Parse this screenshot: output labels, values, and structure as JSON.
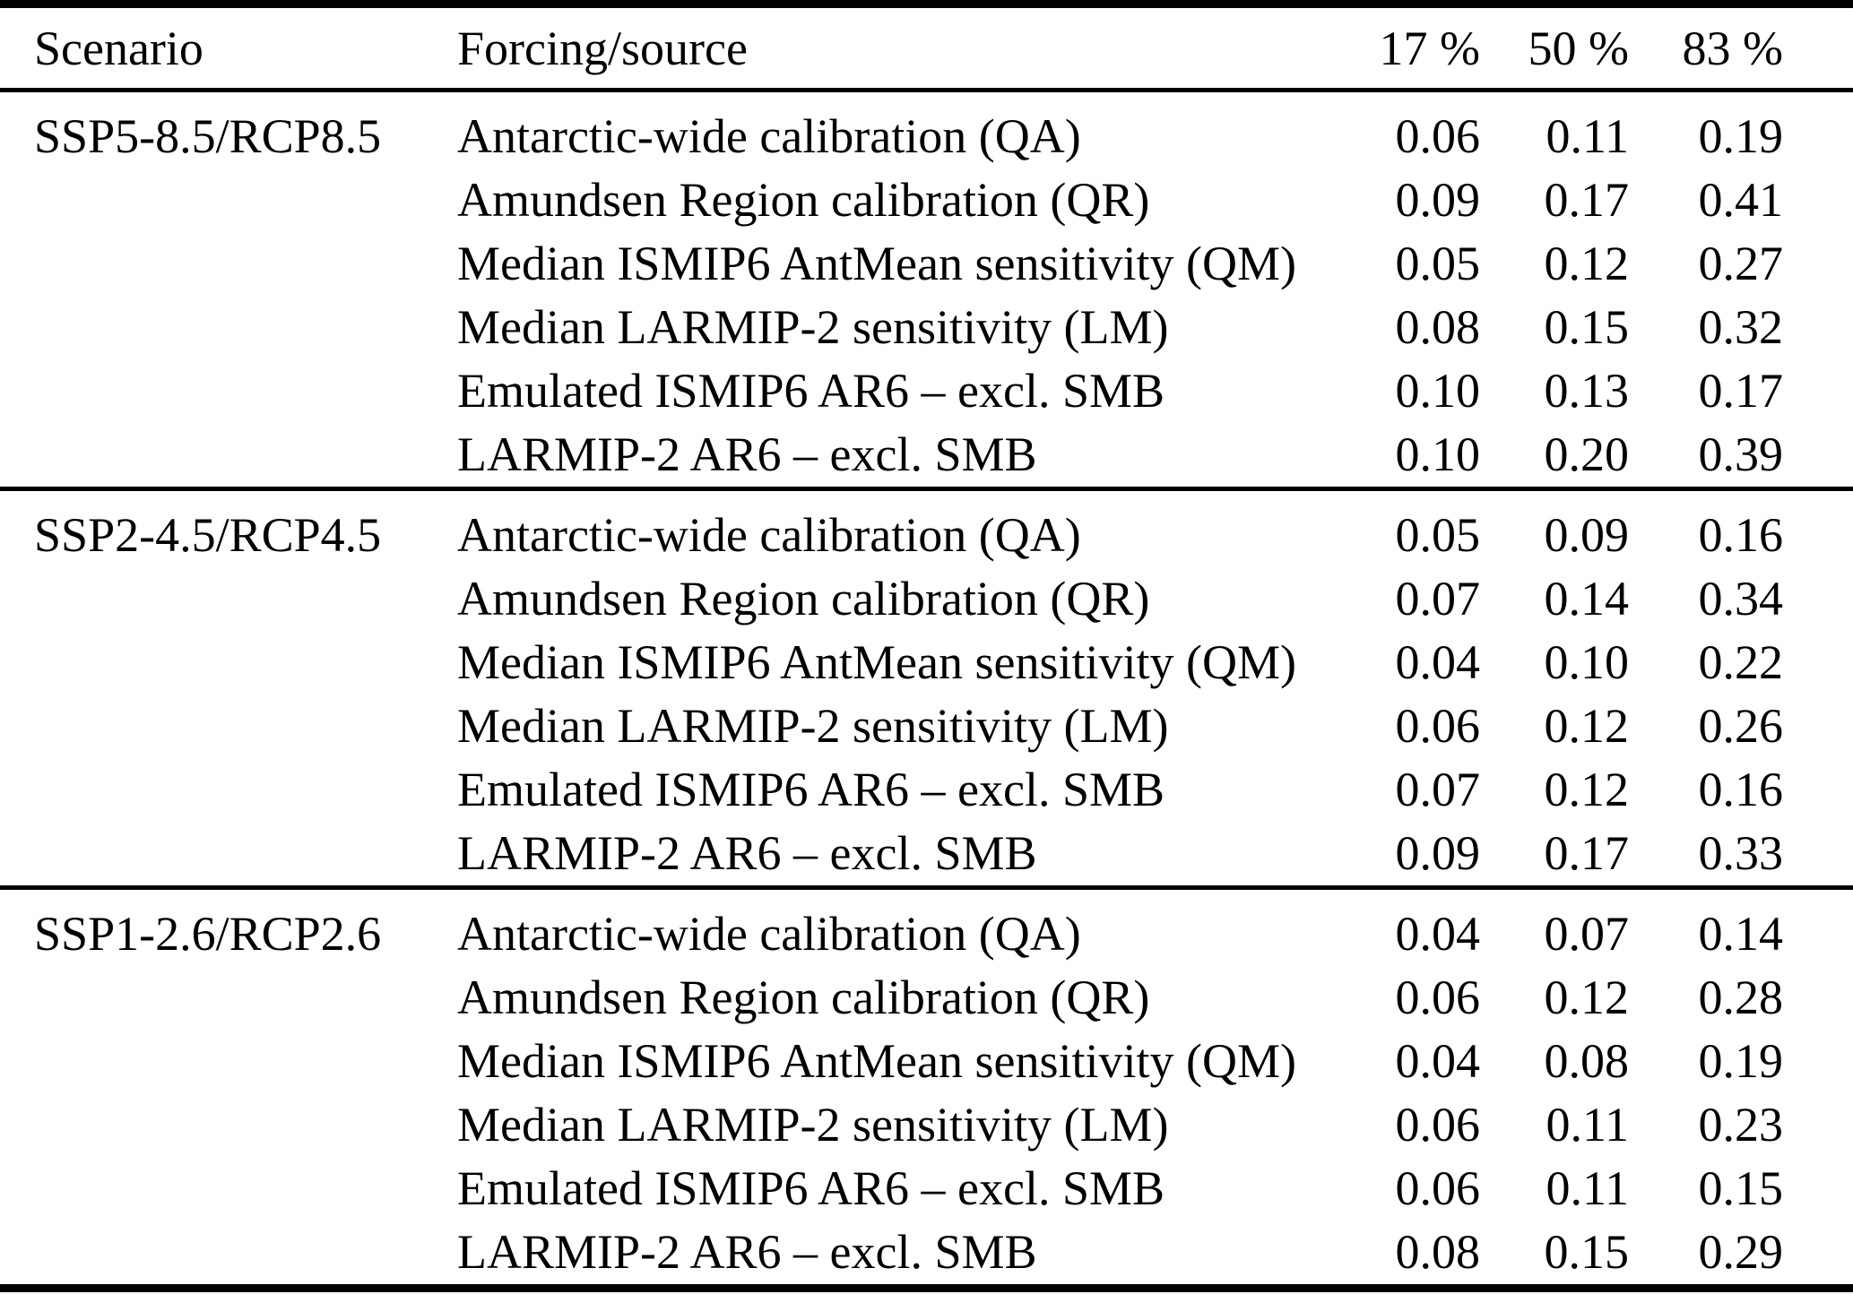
{
  "table": {
    "header": {
      "scenario": "Scenario",
      "forcing": "Forcing/source",
      "p17": "17 %",
      "p50": "50 %",
      "p83": "83 %"
    },
    "groups": [
      {
        "scenario": "SSP5-8.5/RCP8.5",
        "rows": [
          {
            "forcing": "Antarctic-wide calibration (QA)",
            "p17": "0.06",
            "p50": "0.11",
            "p83": "0.19"
          },
          {
            "forcing": "Amundsen Region calibration (QR)",
            "p17": "0.09",
            "p50": "0.17",
            "p83": "0.41"
          },
          {
            "forcing": "Median ISMIP6 AntMean sensitivity (QM)",
            "p17": "0.05",
            "p50": "0.12",
            "p83": "0.27"
          },
          {
            "forcing": "Median LARMIP-2 sensitivity (LM)",
            "p17": "0.08",
            "p50": "0.15",
            "p83": "0.32"
          },
          {
            "forcing": "Emulated ISMIP6 AR6 – excl. SMB",
            "p17": "0.10",
            "p50": "0.13",
            "p83": "0.17"
          },
          {
            "forcing": "LARMIP-2 AR6 – excl. SMB",
            "p17": "0.10",
            "p50": "0.20",
            "p83": "0.39"
          }
        ]
      },
      {
        "scenario": "SSP2-4.5/RCP4.5",
        "rows": [
          {
            "forcing": "Antarctic-wide calibration (QA)",
            "p17": "0.05",
            "p50": "0.09",
            "p83": "0.16"
          },
          {
            "forcing": "Amundsen Region calibration (QR)",
            "p17": "0.07",
            "p50": "0.14",
            "p83": "0.34"
          },
          {
            "forcing": "Median ISMIP6 AntMean sensitivity (QM)",
            "p17": "0.04",
            "p50": "0.10",
            "p83": "0.22"
          },
          {
            "forcing": "Median LARMIP-2 sensitivity (LM)",
            "p17": "0.06",
            "p50": "0.12",
            "p83": "0.26"
          },
          {
            "forcing": "Emulated ISMIP6 AR6 – excl. SMB",
            "p17": "0.07",
            "p50": "0.12",
            "p83": "0.16"
          },
          {
            "forcing": "LARMIP-2 AR6 – excl. SMB",
            "p17": "0.09",
            "p50": "0.17",
            "p83": "0.33"
          }
        ]
      },
      {
        "scenario": "SSP1-2.6/RCP2.6",
        "rows": [
          {
            "forcing": "Antarctic-wide calibration (QA)",
            "p17": "0.04",
            "p50": "0.07",
            "p83": "0.14"
          },
          {
            "forcing": "Amundsen Region calibration (QR)",
            "p17": "0.06",
            "p50": "0.12",
            "p83": "0.28"
          },
          {
            "forcing": "Median ISMIP6 AntMean sensitivity (QM)",
            "p17": "0.04",
            "p50": "0.08",
            "p83": "0.19"
          },
          {
            "forcing": "Median LARMIP-2 sensitivity (LM)",
            "p17": "0.06",
            "p50": "0.11",
            "p83": "0.23"
          },
          {
            "forcing": "Emulated ISMIP6 AR6 – excl. SMB",
            "p17": "0.06",
            "p50": "0.11",
            "p83": "0.15"
          },
          {
            "forcing": "LARMIP-2 AR6 – excl. SMB",
            "p17": "0.08",
            "p50": "0.15",
            "p83": "0.29"
          }
        ]
      }
    ],
    "colors": {
      "text": "#000000",
      "background": "#ffffff",
      "rule": "#000000"
    }
  }
}
